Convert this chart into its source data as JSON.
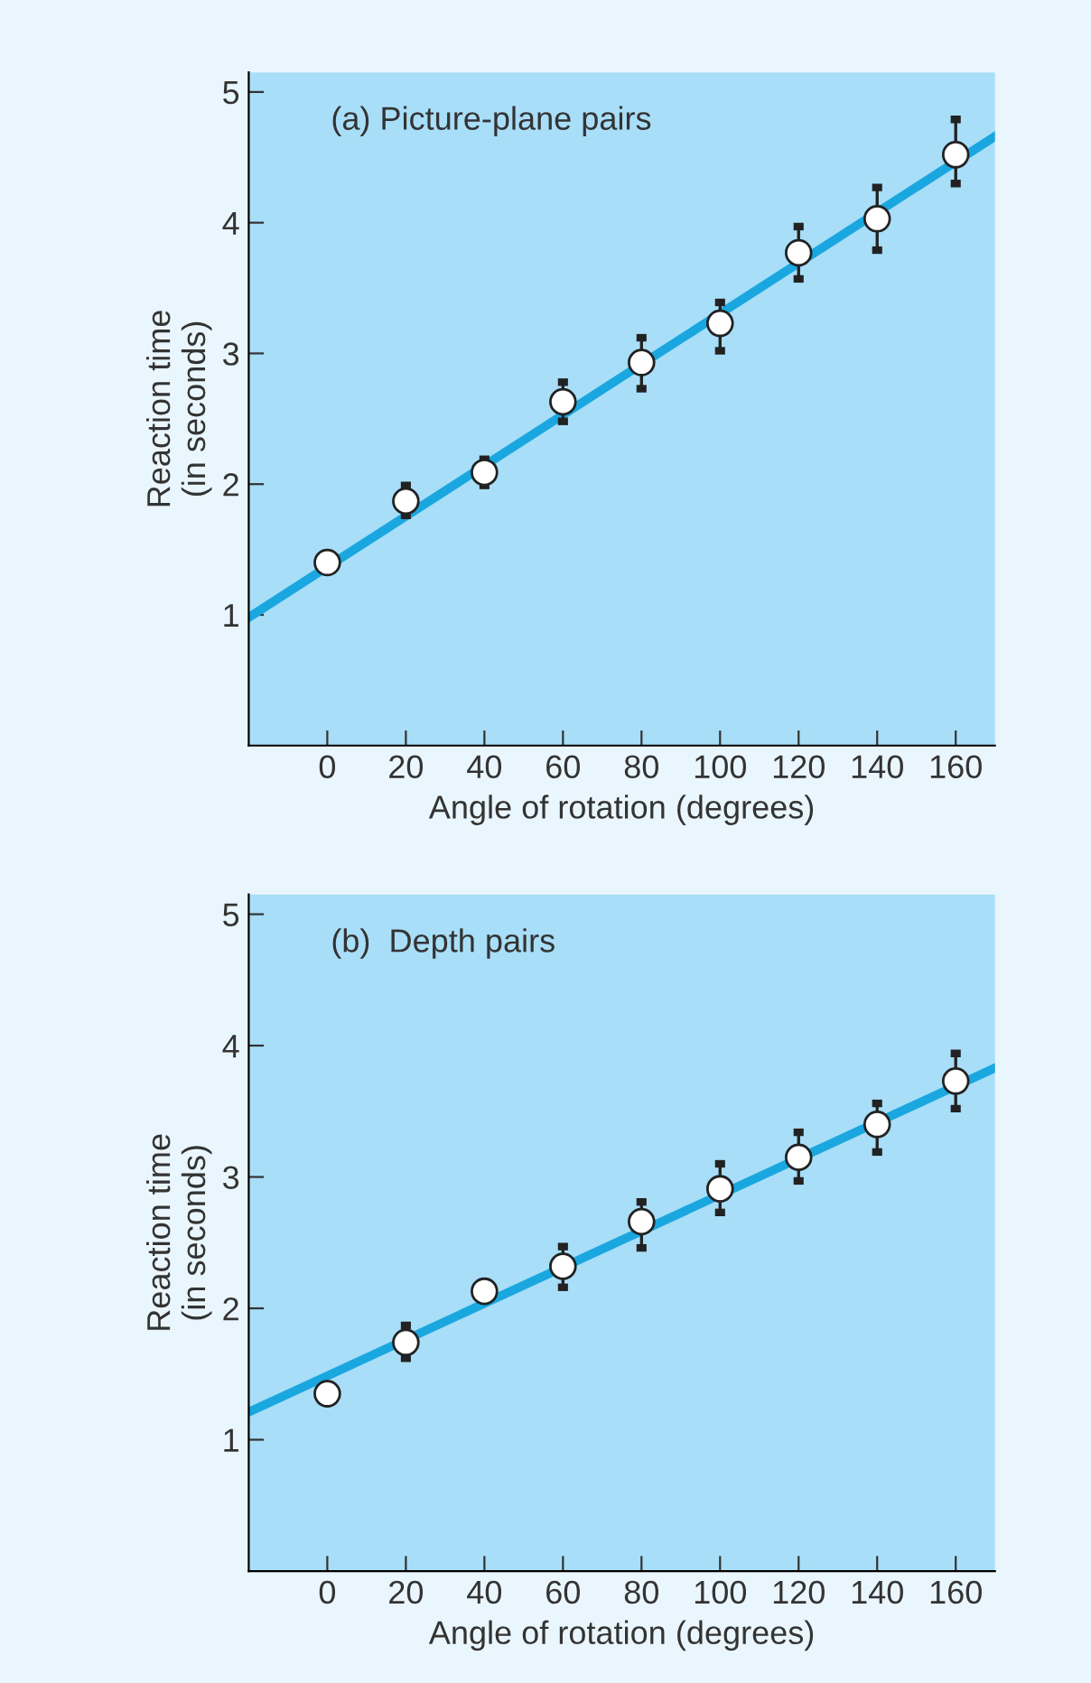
{
  "chart_data": [
    {
      "type": "scatter",
      "title": "(a) Picture-plane pairs",
      "xlabel": "Angle of rotation (degrees)",
      "ylabel": "Reaction time\n(in seconds)",
      "xlim": [
        -20,
        170
      ],
      "ylim": [
        0,
        5.15
      ],
      "xticks": [
        0,
        20,
        40,
        60,
        80,
        100,
        120,
        140,
        160
      ],
      "yticks": [
        1,
        2,
        3,
        4,
        5
      ],
      "grid": false,
      "legend": false,
      "series": [
        {
          "type": "line",
          "color": "#1aa7e0",
          "x": [
            -20,
            170
          ],
          "values": [
            0.98,
            4.66
          ]
        },
        {
          "marker": "circle",
          "color": "#ffffff",
          "x": [
            0,
            20,
            40,
            60,
            80,
            100,
            120,
            140,
            160
          ],
          "values": [
            1.4,
            1.87,
            2.09,
            2.63,
            2.93,
            3.23,
            3.77,
            4.03,
            4.52
          ],
          "errors": [
            null,
            [
              1.76,
              1.99
            ],
            [
              1.99,
              2.19
            ],
            [
              2.48,
              2.78
            ],
            [
              2.73,
              3.12
            ],
            [
              3.02,
              3.39
            ],
            [
              3.57,
              3.97
            ],
            [
              3.79,
              4.27
            ],
            [
              4.3,
              4.79
            ]
          ]
        }
      ]
    },
    {
      "type": "scatter",
      "title": "(b)  Depth pairs",
      "xlabel": "Angle of rotation (degrees)",
      "ylabel": "Reaction time\n(in seconds)",
      "xlim": [
        -20,
        170
      ],
      "ylim": [
        0,
        5.15
      ],
      "xticks": [
        0,
        20,
        40,
        60,
        80,
        100,
        120,
        140,
        160
      ],
      "yticks": [
        1,
        2,
        3,
        4,
        5
      ],
      "grid": false,
      "legend": false,
      "series": [
        {
          "type": "line",
          "color": "#1aa7e0",
          "x": [
            -20,
            170
          ],
          "values": [
            1.21,
            3.83
          ]
        },
        {
          "marker": "circle",
          "color": "#ffffff",
          "x": [
            0,
            20,
            40,
            60,
            80,
            100,
            120,
            140,
            160
          ],
          "values": [
            1.35,
            1.74,
            2.13,
            2.32,
            2.66,
            2.91,
            3.15,
            3.4,
            3.73
          ],
          "errors": [
            null,
            [
              1.62,
              1.87
            ],
            null,
            [
              2.16,
              2.47
            ],
            [
              2.46,
              2.81
            ],
            [
              2.73,
              3.1
            ],
            [
              2.97,
              3.34
            ],
            [
              3.19,
              3.56
            ],
            [
              3.52,
              3.94
            ]
          ]
        }
      ]
    }
  ]
}
